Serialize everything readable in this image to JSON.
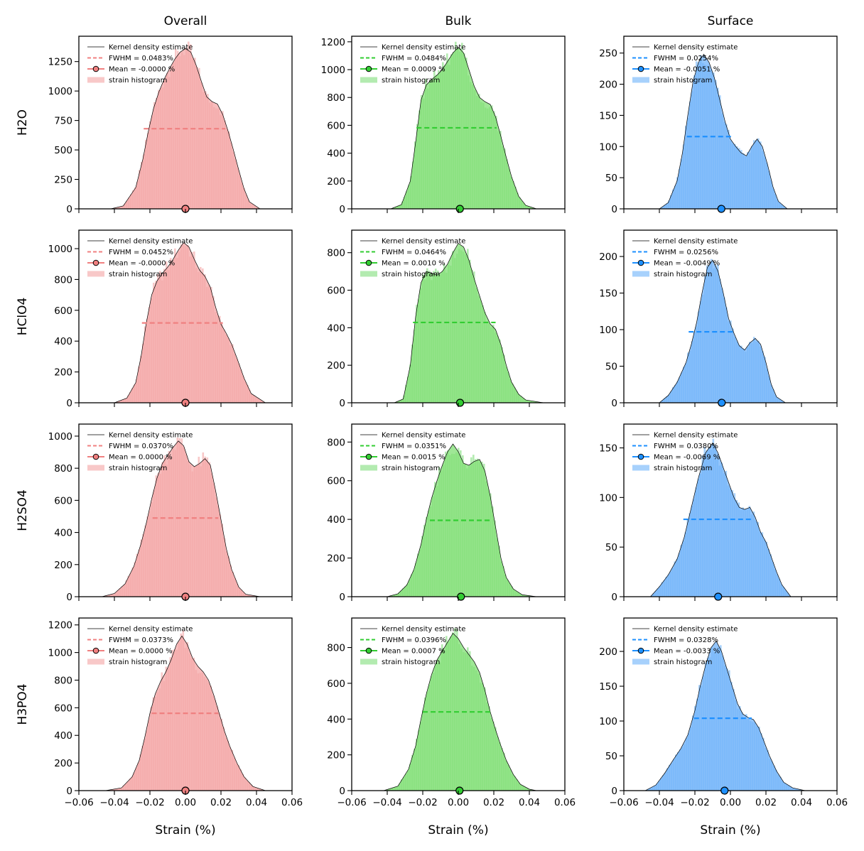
{
  "figure": {
    "column_titles": [
      "Overall",
      "Bulk",
      "Surface"
    ],
    "row_labels": [
      "H2O",
      "HClO4",
      "H2SO4",
      "H3PO4"
    ],
    "xlabel": "Strain (%)",
    "column_colors": {
      "line": [
        "#f08080",
        "#32cd32",
        "#1e90ff"
      ],
      "fill": [
        "#f4a6a6",
        "#7fdf73",
        "#6fb2fa"
      ],
      "hist": [
        "#f8c8c8",
        "#b3ebb0",
        "#a7d1fc"
      ],
      "marker": [
        "#f08080",
        "#32cd32",
        "#1e90ff"
      ],
      "kde": "#000000"
    },
    "legend_labels": {
      "kde": "Kernel density estimate",
      "hist": "strain histogram"
    }
  },
  "chart_data": [
    {
      "type": "area",
      "row": "H2O",
      "column": "Overall",
      "color": "#f08080",
      "xlim": [
        -0.06,
        0.06
      ],
      "ylim": [
        0,
        1465
      ],
      "xticks": [
        -0.06,
        -0.04,
        -0.02,
        0.0,
        0.02,
        0.04,
        0.06
      ],
      "xticklabels": [
        "−0.06",
        "−0.04",
        "−0.02",
        "0.00",
        "0.02",
        "0.04",
        "0.06"
      ],
      "yticks": [
        0,
        250,
        500,
        750,
        1000,
        1250
      ],
      "fwhm_label": "FWHM = 0.0483%",
      "mean_label": "Mean = -0.0000 %",
      "mean": 0.0,
      "fwhm_y": 680,
      "fwhm_x": [
        -0.0235,
        0.0225
      ],
      "kde": {
        "x": [
          -0.042,
          -0.035,
          -0.028,
          -0.024,
          -0.021,
          -0.018,
          -0.015,
          -0.012,
          -0.009,
          -0.006,
          -0.003,
          0.0,
          0.003,
          0.006,
          0.009,
          0.012,
          0.015,
          0.018,
          0.021,
          0.024,
          0.027,
          0.03,
          0.033,
          0.036,
          0.042
        ],
        "y": [
          0,
          25,
          180,
          420,
          650,
          850,
          990,
          1100,
          1190,
          1270,
          1330,
          1360,
          1330,
          1220,
          1080,
          950,
          910,
          890,
          800,
          660,
          500,
          330,
          170,
          60,
          0
        ]
      }
    },
    {
      "type": "area",
      "row": "H2O",
      "column": "Bulk",
      "color": "#32cd32",
      "xlim": [
        -0.06,
        0.06
      ],
      "ylim": [
        0,
        1240
      ],
      "xticks": [
        -0.06,
        -0.04,
        -0.02,
        0.0,
        0.02,
        0.04,
        0.06
      ],
      "xticklabels": [
        "−0.06",
        "−0.04",
        "−0.02",
        "0.00",
        "0.02",
        "0.04",
        "0.06"
      ],
      "yticks": [
        0,
        200,
        400,
        600,
        800,
        1000,
        1200
      ],
      "fwhm_label": "FWHM = 0.0484%",
      "mean_label": "Mean = 0.0009 %",
      "mean": 0.0009,
      "fwhm_y": 582,
      "fwhm_x": [
        -0.0235,
        0.0215
      ],
      "kde": {
        "x": [
          -0.038,
          -0.032,
          -0.027,
          -0.024,
          -0.021,
          -0.018,
          -0.015,
          -0.012,
          -0.009,
          -0.006,
          -0.003,
          0.0,
          0.003,
          0.006,
          0.009,
          0.012,
          0.015,
          0.018,
          0.021,
          0.024,
          0.027,
          0.03,
          0.034,
          0.038,
          0.044
        ],
        "y": [
          0,
          30,
          200,
          480,
          780,
          890,
          930,
          960,
          1000,
          1060,
          1120,
          1160,
          1120,
          1000,
          880,
          800,
          770,
          750,
          660,
          520,
          370,
          230,
          90,
          25,
          0
        ]
      }
    },
    {
      "type": "area",
      "row": "H2O",
      "column": "Surface",
      "color": "#1e90ff",
      "xlim": [
        -0.06,
        0.06
      ],
      "ylim": [
        0,
        277
      ],
      "xticks": [
        -0.06,
        -0.04,
        -0.02,
        0.0,
        0.02,
        0.04,
        0.06
      ],
      "xticklabels": [
        "−0.06",
        "−0.04",
        "−0.02",
        "0.00",
        "0.02",
        "0.04",
        "0.06"
      ],
      "yticks": [
        0,
        50,
        100,
        150,
        200,
        250
      ],
      "fwhm_label": "FWHM = 0.0254%",
      "mean_label": "Mean = -0.0051 %",
      "mean": -0.0051,
      "fwhm_y": 116,
      "fwhm_x": [
        -0.0245,
        0.0015
      ],
      "kde": {
        "x": [
          -0.04,
          -0.035,
          -0.03,
          -0.027,
          -0.024,
          -0.021,
          -0.018,
          -0.015,
          -0.012,
          -0.009,
          -0.006,
          -0.003,
          0.0,
          0.003,
          0.006,
          0.009,
          0.012,
          0.015,
          0.018,
          0.021,
          0.024,
          0.027,
          0.032
        ],
        "y": [
          0,
          10,
          45,
          90,
          150,
          205,
          235,
          248,
          235,
          210,
          175,
          140,
          112,
          100,
          90,
          85,
          100,
          112,
          100,
          70,
          35,
          12,
          0
        ]
      }
    },
    {
      "type": "area",
      "row": "HClO4",
      "column": "Overall",
      "color": "#f08080",
      "xlim": [
        -0.06,
        0.06
      ],
      "ylim": [
        0,
        1120
      ],
      "xticks": [
        -0.06,
        -0.04,
        -0.02,
        0.0,
        0.02,
        0.04,
        0.06
      ],
      "xticklabels": [
        "−0.06",
        "−0.04",
        "−0.02",
        "0.00",
        "0.02",
        "0.04",
        "0.06"
      ],
      "yticks": [
        0,
        200,
        400,
        600,
        800,
        1000
      ],
      "fwhm_label": "FWHM = 0.0452%",
      "mean_label": "Mean = -0.0000 %",
      "mean": 0.0,
      "fwhm_y": 518,
      "fwhm_x": [
        -0.0245,
        0.021
      ],
      "kde": {
        "x": [
          -0.04,
          -0.033,
          -0.028,
          -0.025,
          -0.022,
          -0.019,
          -0.016,
          -0.013,
          -0.01,
          -0.007,
          -0.004,
          -0.001,
          0.002,
          0.005,
          0.008,
          0.011,
          0.014,
          0.017,
          0.02,
          0.023,
          0.026,
          0.029,
          0.033,
          0.037,
          0.045
        ],
        "y": [
          0,
          30,
          130,
          300,
          520,
          700,
          790,
          840,
          880,
          930,
          990,
          1040,
          1010,
          930,
          860,
          820,
          750,
          620,
          510,
          450,
          380,
          290,
          160,
          60,
          0
        ]
      }
    },
    {
      "type": "area",
      "row": "HClO4",
      "column": "Bulk",
      "color": "#32cd32",
      "xlim": [
        -0.06,
        0.06
      ],
      "ylim": [
        0,
        920
      ],
      "xticks": [
        -0.06,
        -0.04,
        -0.02,
        0.0,
        0.02,
        0.04,
        0.06
      ],
      "xticklabels": [
        "−0.06",
        "−0.04",
        "−0.02",
        "0.00",
        "0.02",
        "0.04",
        "0.06"
      ],
      "yticks": [
        0,
        200,
        400,
        600,
        800
      ],
      "fwhm_label": "FWHM = 0.0464%",
      "mean_label": "Mean = 0.0010 %",
      "mean": 0.001,
      "fwhm_y": 428,
      "fwhm_x": [
        -0.0255,
        0.021
      ],
      "kde": {
        "x": [
          -0.036,
          -0.031,
          -0.027,
          -0.024,
          -0.021,
          -0.018,
          -0.015,
          -0.012,
          -0.009,
          -0.006,
          -0.003,
          0.0,
          0.003,
          0.006,
          0.009,
          0.012,
          0.015,
          0.018,
          0.021,
          0.024,
          0.027,
          0.03,
          0.034,
          0.038,
          0.048
        ],
        "y": [
          0,
          20,
          200,
          460,
          640,
          700,
          690,
          680,
          700,
          740,
          800,
          850,
          830,
          760,
          660,
          570,
          480,
          420,
          390,
          310,
          200,
          110,
          45,
          15,
          0
        ]
      }
    },
    {
      "type": "area",
      "row": "HClO4",
      "column": "Surface",
      "color": "#1e90ff",
      "xlim": [
        -0.06,
        0.06
      ],
      "ylim": [
        0,
        236
      ],
      "xticks": [
        -0.06,
        -0.04,
        -0.02,
        0.0,
        0.02,
        0.04,
        0.06
      ],
      "xticklabels": [
        "−0.06",
        "−0.04",
        "−0.02",
        "0.00",
        "0.02",
        "0.04",
        "0.06"
      ],
      "yticks": [
        0,
        50,
        100,
        150,
        200
      ],
      "fwhm_label": "FWHM = 0.0256%",
      "mean_label": "Mean = -0.0049 %",
      "mean": -0.0049,
      "fwhm_y": 97,
      "fwhm_x": [
        -0.0235,
        0.002
      ],
      "kde": {
        "x": [
          -0.04,
          -0.035,
          -0.03,
          -0.025,
          -0.022,
          -0.019,
          -0.016,
          -0.013,
          -0.01,
          -0.007,
          -0.004,
          -0.001,
          0.002,
          0.005,
          0.008,
          0.011,
          0.014,
          0.017,
          0.02,
          0.023,
          0.026,
          0.031
        ],
        "y": [
          0,
          10,
          28,
          55,
          80,
          110,
          150,
          185,
          195,
          180,
          150,
          115,
          95,
          78,
          72,
          82,
          88,
          80,
          55,
          25,
          8,
          0
        ]
      }
    },
    {
      "type": "area",
      "row": "H2SO4",
      "column": "Overall",
      "color": "#f08080",
      "xlim": [
        -0.06,
        0.06
      ],
      "ylim": [
        0,
        1075
      ],
      "xticks": [
        -0.06,
        -0.04,
        -0.02,
        0.0,
        0.02,
        0.04,
        0.06
      ],
      "xticklabels": [
        "−0.06",
        "−0.04",
        "−0.02",
        "0.00",
        "0.02",
        "0.04",
        "0.06"
      ],
      "yticks": [
        0,
        200,
        400,
        600,
        800,
        1000
      ],
      "fwhm_label": "FWHM = 0.0370%",
      "mean_label": "Mean = 0.0000 %",
      "mean": 0.0,
      "fwhm_y": 490,
      "fwhm_x": [
        -0.0185,
        0.0185
      ],
      "kde": {
        "x": [
          -0.047,
          -0.04,
          -0.034,
          -0.029,
          -0.025,
          -0.022,
          -0.019,
          -0.016,
          -0.013,
          -0.01,
          -0.007,
          -0.004,
          -0.001,
          0.002,
          0.005,
          0.008,
          0.011,
          0.014,
          0.017,
          0.02,
          0.023,
          0.026,
          0.03,
          0.034,
          0.042
        ],
        "y": [
          0,
          20,
          80,
          190,
          330,
          460,
          610,
          740,
          830,
          880,
          930,
          970,
          940,
          840,
          810,
          830,
          860,
          820,
          660,
          480,
          300,
          170,
          60,
          15,
          0
        ]
      }
    },
    {
      "type": "area",
      "row": "H2SO4",
      "column": "Bulk",
      "color": "#32cd32",
      "xlim": [
        -0.06,
        0.06
      ],
      "ylim": [
        0,
        893
      ],
      "xticks": [
        -0.06,
        -0.04,
        -0.02,
        0.0,
        0.02,
        0.04,
        0.06
      ],
      "xticklabels": [
        "−0.06",
        "−0.04",
        "−0.02",
        "0.00",
        "0.02",
        "0.04",
        "0.06"
      ],
      "yticks": [
        0,
        200,
        400,
        600,
        800
      ],
      "fwhm_label": "FWHM = 0.0351%",
      "mean_label": "Mean = 0.0015 %",
      "mean": 0.0015,
      "fwhm_y": 395,
      "fwhm_x": [
        -0.016,
        0.019
      ],
      "kde": {
        "x": [
          -0.04,
          -0.034,
          -0.029,
          -0.025,
          -0.021,
          -0.018,
          -0.015,
          -0.012,
          -0.009,
          -0.006,
          -0.003,
          0.0,
          0.003,
          0.006,
          0.009,
          0.012,
          0.015,
          0.018,
          0.021,
          0.024,
          0.027,
          0.031,
          0.036,
          0.044
        ],
        "y": [
          0,
          15,
          60,
          140,
          270,
          400,
          510,
          600,
          680,
          750,
          790,
          750,
          690,
          680,
          700,
          710,
          650,
          520,
          360,
          200,
          100,
          40,
          10,
          0
        ]
      }
    },
    {
      "type": "area",
      "row": "H2SO4",
      "column": "Surface",
      "color": "#1e90ff",
      "xlim": [
        -0.06,
        0.06
      ],
      "ylim": [
        0,
        174
      ],
      "xticks": [
        -0.06,
        -0.04,
        -0.02,
        0.0,
        0.02,
        0.04,
        0.06
      ],
      "xticklabels": [
        "−0.06",
        "−0.04",
        "−0.02",
        "0.00",
        "0.02",
        "0.04",
        "0.06"
      ],
      "yticks": [
        0,
        50,
        100,
        150
      ],
      "fwhm_label": "FWHM = 0.0380%",
      "mean_label": "Mean = -0.0069 %",
      "mean": -0.0069,
      "fwhm_y": 78,
      "fwhm_x": [
        -0.0265,
        0.0115
      ],
      "kde": {
        "x": [
          -0.045,
          -0.04,
          -0.035,
          -0.03,
          -0.026,
          -0.022,
          -0.018,
          -0.014,
          -0.01,
          -0.007,
          -0.004,
          -0.001,
          0.002,
          0.005,
          0.008,
          0.011,
          0.014,
          0.017,
          0.02,
          0.023,
          0.026,
          0.029,
          0.034
        ],
        "y": [
          0,
          10,
          22,
          38,
          60,
          90,
          120,
          145,
          155,
          145,
          130,
          115,
          100,
          90,
          88,
          90,
          80,
          65,
          55,
          40,
          25,
          12,
          0
        ]
      }
    },
    {
      "type": "area",
      "row": "H3PO4",
      "column": "Overall",
      "color": "#f08080",
      "xlim": [
        -0.06,
        0.06
      ],
      "ylim": [
        0,
        1250
      ],
      "xticks": [
        -0.06,
        -0.04,
        -0.02,
        0.0,
        0.02,
        0.04,
        0.06
      ],
      "xticklabels": [
        "−0.06",
        "−0.04",
        "−0.02",
        "0.00",
        "0.02",
        "0.04",
        "0.06"
      ],
      "yticks": [
        0,
        200,
        400,
        600,
        800,
        1000,
        1200
      ],
      "fwhm_label": "FWHM = 0.0373%",
      "mean_label": "Mean = 0.0000 %",
      "mean": 0.0,
      "fwhm_y": 560,
      "fwhm_x": [
        -0.019,
        0.0185
      ],
      "kde": {
        "x": [
          -0.045,
          -0.036,
          -0.03,
          -0.026,
          -0.023,
          -0.02,
          -0.017,
          -0.014,
          -0.011,
          -0.008,
          -0.005,
          -0.002,
          0.001,
          0.004,
          0.007,
          0.01,
          0.013,
          0.016,
          0.019,
          0.022,
          0.025,
          0.029,
          0.033,
          0.038,
          0.045
        ],
        "y": [
          0,
          20,
          100,
          220,
          380,
          560,
          700,
          790,
          860,
          950,
          1060,
          1120,
          1060,
          960,
          900,
          860,
          800,
          690,
          560,
          430,
          320,
          200,
          100,
          30,
          0
        ]
      }
    },
    {
      "type": "area",
      "row": "H3PO4",
      "column": "Bulk",
      "color": "#32cd32",
      "xlim": [
        -0.06,
        0.06
      ],
      "ylim": [
        0,
        965
      ],
      "xticks": [
        -0.06,
        -0.04,
        -0.02,
        0.0,
        0.02,
        0.04,
        0.06
      ],
      "xticklabels": [
        "−0.06",
        "−0.04",
        "−0.02",
        "0.00",
        "0.02",
        "0.04",
        "0.06"
      ],
      "yticks": [
        0,
        200,
        400,
        600,
        800
      ],
      "fwhm_label": "FWHM = 0.0396%",
      "mean_label": "Mean = 0.0007 %",
      "mean": 0.0007,
      "fwhm_y": 440,
      "fwhm_x": [
        -0.02,
        0.0195
      ],
      "kde": {
        "x": [
          -0.042,
          -0.034,
          -0.028,
          -0.024,
          -0.021,
          -0.018,
          -0.015,
          -0.012,
          -0.009,
          -0.006,
          -0.003,
          0.0,
          0.003,
          0.006,
          0.009,
          0.012,
          0.015,
          0.018,
          0.021,
          0.024,
          0.027,
          0.031,
          0.035,
          0.04,
          0.044
        ],
        "y": [
          0,
          25,
          120,
          250,
          400,
          540,
          650,
          730,
          780,
          830,
          880,
          850,
          800,
          760,
          720,
          660,
          560,
          440,
          340,
          250,
          170,
          90,
          35,
          8,
          0
        ]
      }
    },
    {
      "type": "area",
      "row": "H3PO4",
      "column": "Surface",
      "color": "#1e90ff",
      "xlim": [
        -0.06,
        0.06
      ],
      "ylim": [
        0,
        248
      ],
      "xticks": [
        -0.06,
        -0.04,
        -0.02,
        0.0,
        0.02,
        0.04,
        0.06
      ],
      "xticklabels": [
        "−0.06",
        "−0.04",
        "−0.02",
        "0.00",
        "0.02",
        "0.04",
        "0.06"
      ],
      "yticks": [
        0,
        50,
        100,
        150,
        200
      ],
      "fwhm_label": "FWHM = 0.0328%",
      "mean_label": "Mean = -0.0033 %",
      "mean": -0.0033,
      "fwhm_y": 104,
      "fwhm_x": [
        -0.0205,
        0.012
      ],
      "kde": {
        "x": [
          -0.048,
          -0.042,
          -0.037,
          -0.032,
          -0.028,
          -0.024,
          -0.02,
          -0.017,
          -0.014,
          -0.011,
          -0.008,
          -0.005,
          -0.002,
          0.001,
          0.004,
          0.007,
          0.01,
          0.013,
          0.016,
          0.019,
          0.022,
          0.026,
          0.03,
          0.035,
          0.042
        ],
        "y": [
          0,
          8,
          25,
          45,
          60,
          80,
          115,
          150,
          180,
          205,
          215,
          200,
          175,
          150,
          125,
          110,
          105,
          102,
          90,
          70,
          50,
          28,
          12,
          4,
          0
        ]
      }
    }
  ]
}
